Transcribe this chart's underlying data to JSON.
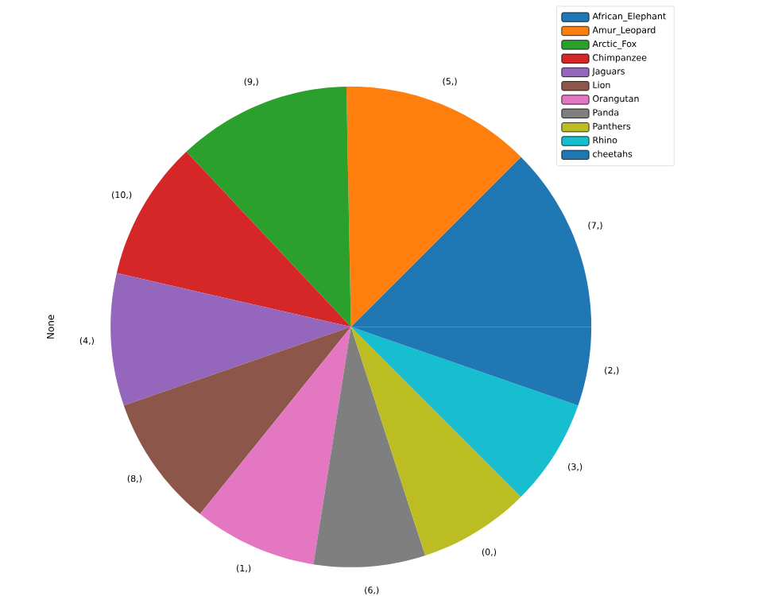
{
  "chart_data": {
    "type": "pie",
    "ylabel": "None",
    "legend": "top right",
    "categories": [
      "African_Elephant",
      "Amur_Leopard",
      "Arctic_Fox",
      "Chimpanzee",
      "Jaguars",
      "Lion",
      "Orangutan",
      "Panda",
      "Panthers",
      "Rhino",
      "cheetahs"
    ],
    "values": [
      12.5,
      12.8,
      11.7,
      9.4,
      8.9,
      8.9,
      8.3,
      7.5,
      7.5,
      7.2,
      5.3
    ],
    "annotations": [
      "(7,)",
      "(5,)",
      "(9,)",
      "(10,)",
      "(4,)",
      "(8,)",
      "(1,)",
      "(6,)",
      "(0,)",
      "(3,)",
      "(2,)"
    ],
    "colors": [
      "#1f77b4",
      "#ff7f0e",
      "#2ca02c",
      "#d62728",
      "#9467bd",
      "#8c564b",
      "#e377c2",
      "#7f7f7f",
      "#bcbd22",
      "#17becf",
      "#1f77b4"
    ]
  }
}
